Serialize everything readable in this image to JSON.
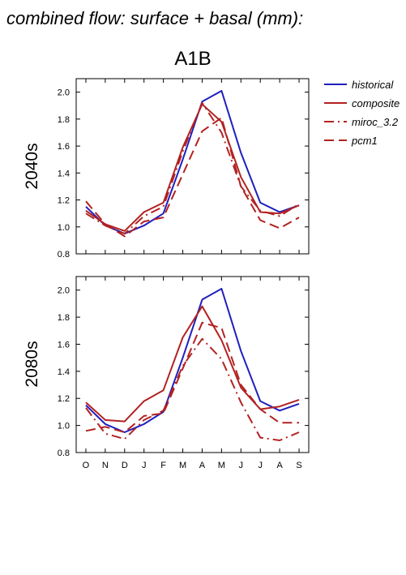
{
  "page": {
    "title": "combined flow: surface + basal (mm):",
    "subtitle": "A1B"
  },
  "colors": {
    "historical": "#1f1fbf",
    "composite": "#b22222",
    "miroc_3.2": "#b22222",
    "pcm1": "#b22222"
  },
  "legend": {
    "placement": "right",
    "items": [
      {
        "label": "historical",
        "style": "solid",
        "color": "#1f1fbf"
      },
      {
        "label": "composite",
        "style": "solid",
        "color": "#b22222"
      },
      {
        "label": "miroc_3.2",
        "style": "dashdot",
        "color": "#b22222"
      },
      {
        "label": "pcm1",
        "style": "dashed",
        "color": "#b22222"
      }
    ]
  },
  "chart_data": [
    {
      "type": "line",
      "title": "",
      "row_label": "2040s",
      "xlabel": "",
      "ylabel": "",
      "categories": [
        "O",
        "N",
        "D",
        "J",
        "F",
        "M",
        "A",
        "M",
        "J",
        "J",
        "A",
        "S"
      ],
      "ylim": [
        0.8,
        2.1
      ],
      "yticks": [
        0.8,
        1.0,
        1.2,
        1.4,
        1.6,
        1.8,
        2.0
      ],
      "grid": false,
      "series": [
        {
          "name": "historical",
          "style": "solid",
          "values": [
            1.15,
            1.01,
            0.95,
            1.01,
            1.1,
            1.5,
            1.93,
            2.01,
            1.55,
            1.18,
            1.11,
            1.16
          ]
        },
        {
          "name": "composite",
          "style": "solid",
          "values": [
            1.12,
            1.02,
            0.97,
            1.11,
            1.18,
            1.59,
            1.91,
            1.78,
            1.37,
            1.11,
            1.1,
            1.16
          ]
        },
        {
          "name": "miroc_3.2",
          "style": "dashdot",
          "values": [
            1.1,
            1.01,
            0.95,
            1.08,
            1.15,
            1.56,
            1.92,
            1.7,
            1.3,
            1.12,
            1.08,
            1.17
          ]
        },
        {
          "name": "pcm1",
          "style": "dashed",
          "values": [
            1.19,
            1.02,
            0.93,
            1.04,
            1.07,
            1.39,
            1.71,
            1.81,
            1.3,
            1.05,
            0.99,
            1.07
          ]
        }
      ]
    },
    {
      "type": "line",
      "title": "",
      "row_label": "2080s",
      "xlabel": "",
      "ylabel": "",
      "categories": [
        "O",
        "N",
        "D",
        "J",
        "F",
        "M",
        "A",
        "M",
        "J",
        "J",
        "A",
        "S"
      ],
      "ylim": [
        0.8,
        2.1
      ],
      "yticks": [
        0.8,
        1.0,
        1.2,
        1.4,
        1.6,
        1.8,
        2.0
      ],
      "grid": false,
      "series": [
        {
          "name": "historical",
          "style": "solid",
          "values": [
            1.15,
            1.01,
            0.95,
            1.01,
            1.1,
            1.5,
            1.93,
            2.01,
            1.55,
            1.18,
            1.11,
            1.16
          ]
        },
        {
          "name": "composite",
          "style": "solid",
          "values": [
            1.17,
            1.04,
            1.03,
            1.18,
            1.26,
            1.65,
            1.88,
            1.63,
            1.28,
            1.12,
            1.14,
            1.19
          ]
        },
        {
          "name": "miroc_3.2",
          "style": "dashdot",
          "values": [
            1.13,
            0.94,
            0.9,
            1.04,
            1.11,
            1.44,
            1.64,
            1.49,
            1.17,
            0.91,
            0.89,
            0.95
          ]
        },
        {
          "name": "pcm1",
          "style": "dashed",
          "values": [
            0.96,
            0.99,
            0.95,
            1.07,
            1.09,
            1.42,
            1.76,
            1.72,
            1.3,
            1.12,
            1.02,
            1.02
          ]
        }
      ]
    }
  ]
}
